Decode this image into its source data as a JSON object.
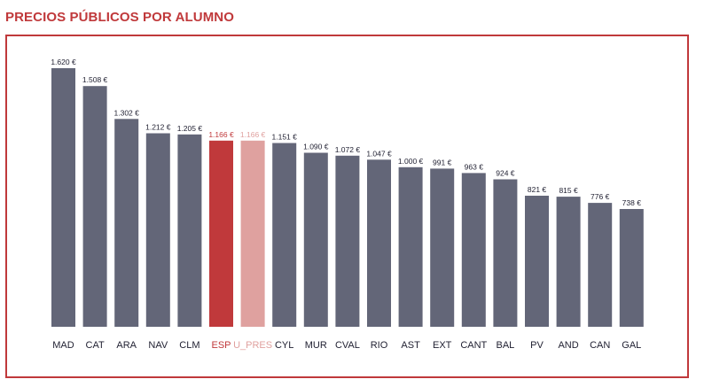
{
  "chart_data": {
    "type": "bar",
    "title": "PRECIOS PÚBLICOS POR ALUMNO",
    "categories": [
      "MAD",
      "CAT",
      "ARA",
      "NAV",
      "CLM",
      "ESP",
      "U_PRES",
      "CYL",
      "MUR",
      "CVAL",
      "RIO",
      "AST",
      "EXT",
      "CANT",
      "BAL",
      "PV",
      "AND",
      "CAN",
      "GAL"
    ],
    "values": [
      1620,
      1508,
      1302,
      1212,
      1205,
      1166,
      1166,
      1151,
      1090,
      1072,
      1047,
      1000,
      991,
      963,
      924,
      821,
      815,
      776,
      738
    ],
    "value_labels": [
      "1.620 €",
      "1.508 €",
      "1.302 €",
      "1.212 €",
      "1.205 €",
      "1.166 €",
      "1.166 €",
      "1.151 €",
      "1.090 €",
      "1.072 €",
      "1.047 €",
      "1.000 €",
      "991 €",
      "963 €",
      "924 €",
      "821 €",
      "815 €",
      "776 €",
      "738 €"
    ],
    "ylim": [
      0,
      1620
    ],
    "grid": false,
    "colors": {
      "default": "#636678",
      "highlight": "#c0393b",
      "highlight_light": "#dfa19f",
      "highlight_label": "#c0393b",
      "highlight_light_label": "#e0a19f",
      "label": "#222233"
    },
    "bar_color_keys": [
      "default",
      "default",
      "default",
      "default",
      "default",
      "highlight",
      "highlight_light",
      "default",
      "default",
      "default",
      "default",
      "default",
      "default",
      "default",
      "default",
      "default",
      "default",
      "default",
      "default"
    ]
  }
}
